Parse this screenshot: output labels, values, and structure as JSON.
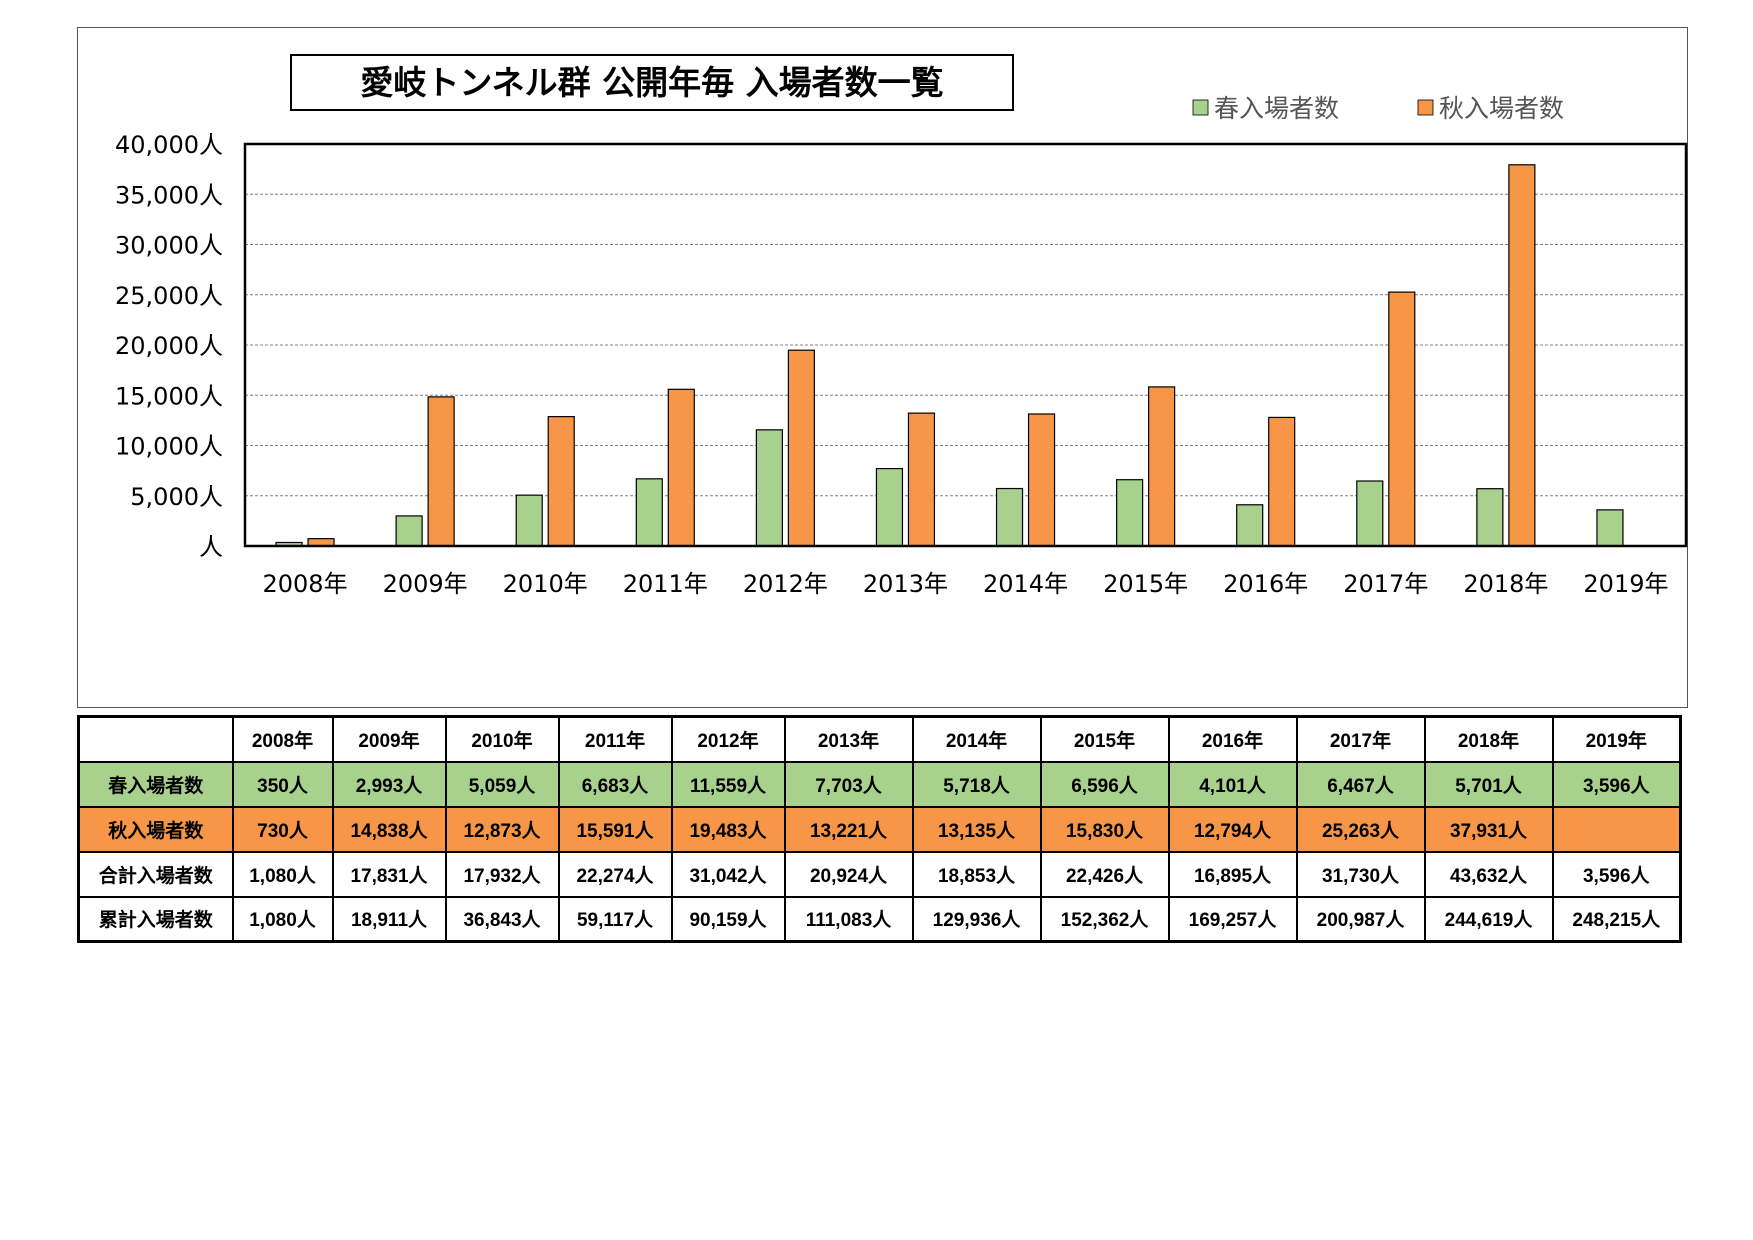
{
  "chart_data": {
    "type": "bar",
    "title": "愛岐トンネル群 公開年毎 入場者数一覧",
    "categories": [
      "2008年",
      "2009年",
      "2010年",
      "2011年",
      "2012年",
      "2013年",
      "2014年",
      "2015年",
      "2016年",
      "2017年",
      "2018年",
      "2019年"
    ],
    "series": [
      {
        "name": "春入場者数",
        "color": "#a9d18e",
        "values": [
          350,
          2993,
          5059,
          6683,
          11559,
          7703,
          5718,
          6596,
          4101,
          6467,
          5701,
          3596
        ]
      },
      {
        "name": "秋入場者数",
        "color": "#f79646",
        "values": [
          730,
          14838,
          12873,
          15591,
          19483,
          13221,
          13135,
          15830,
          12794,
          25263,
          37931,
          null
        ]
      }
    ],
    "ylim": [
      0,
      40000
    ],
    "yticks": [
      0,
      5000,
      10000,
      15000,
      20000,
      25000,
      30000,
      35000,
      40000
    ],
    "ytick_labels": [
      "人",
      "5,000人",
      "10,000人",
      "15,000人",
      "20,000人",
      "25,000人",
      "30,000人",
      "35,000人",
      "40,000人"
    ],
    "grid": true,
    "legend_position": "top-right"
  },
  "table": {
    "header": [
      "",
      "2008年",
      "2009年",
      "2010年",
      "2011年",
      "2012年",
      "2013年",
      "2014年",
      "2015年",
      "2016年",
      "2017年",
      "2018年",
      "2019年"
    ],
    "rows": [
      {
        "label": "春入場者数",
        "cells": [
          "350人",
          "2,993人",
          "5,059人",
          "6,683人",
          "11,559人",
          "7,703人",
          "5,718人",
          "6,596人",
          "4,101人",
          "6,467人",
          "5,701人",
          "3,596人"
        ]
      },
      {
        "label": "秋入場者数",
        "cells": [
          "730人",
          "14,838人",
          "12,873人",
          "15,591人",
          "19,483人",
          "13,221人",
          "13,135人",
          "15,830人",
          "12,794人",
          "25,263人",
          "37,931人",
          ""
        ]
      },
      {
        "label": "合計入場者数",
        "cells": [
          "1,080人",
          "17,831人",
          "17,932人",
          "22,274人",
          "31,042人",
          "20,924人",
          "18,853人",
          "22,426人",
          "16,895人",
          "31,730人",
          "43,632人",
          "3,596人"
        ]
      },
      {
        "label": "累計入場者数",
        "cells": [
          "1,080人",
          "18,911人",
          "36,843人",
          "59,117人",
          "90,159人",
          "111,083人",
          "129,936人",
          "152,362人",
          "169,257人",
          "200,987人",
          "244,619人",
          "248,215人"
        ]
      }
    ]
  }
}
